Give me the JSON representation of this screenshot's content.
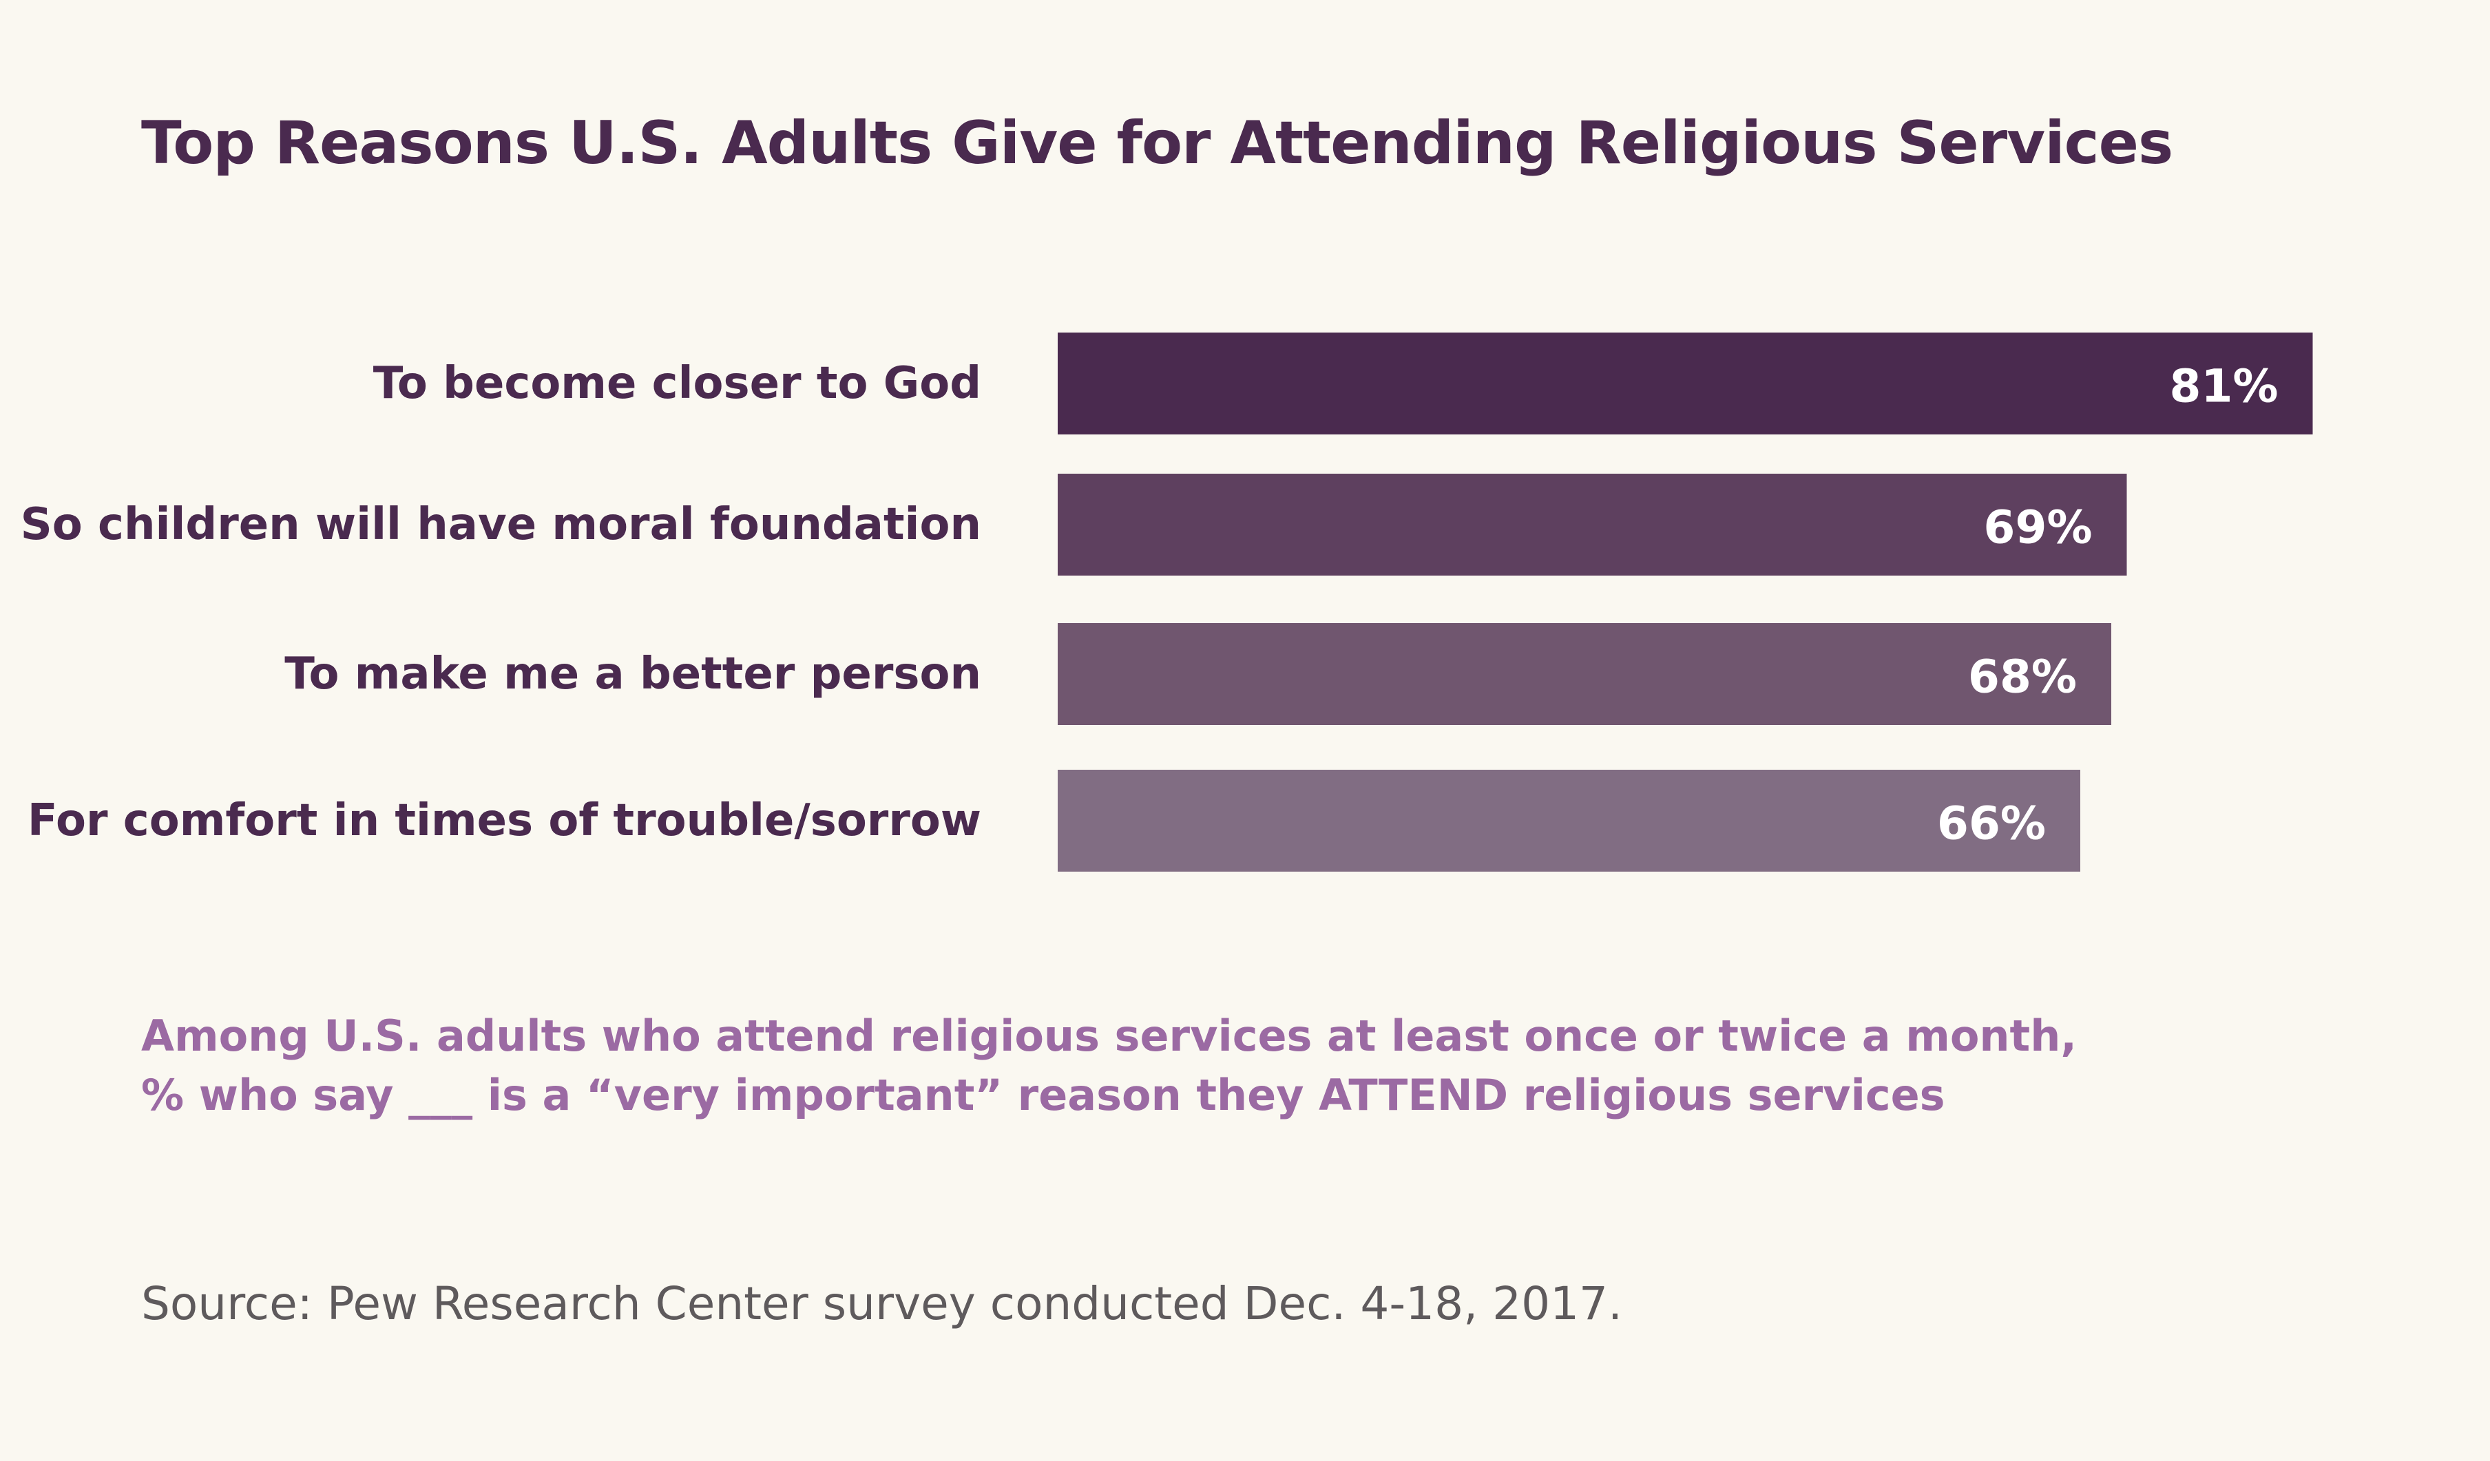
{
  "title": "Top Reasons U.S. Adults Give for Attending Religious Services",
  "subtitle_line1": "Among U.S. adults who attend religious services at least once or twice a month,",
  "subtitle_line2": "% who say ___ is a “very important” reason they ATTEND religious services",
  "source": "Source: Pew Research Center survey conducted Dec. 4-18, 2017.",
  "chart_data": {
    "type": "bar",
    "orientation": "horizontal",
    "categories": [
      "To become closer to God",
      "So children will have moral foundation",
      "To make me a better person",
      "For comfort in times of trouble/sorrow"
    ],
    "values": [
      81,
      69,
      68,
      66
    ],
    "value_labels": [
      "81%",
      "69%",
      "68%",
      "66%"
    ],
    "bar_colors": [
      "#4a2a4f",
      "#5e405f",
      "#70566f",
      "#816d83"
    ],
    "xlim": [
      0,
      100
    ],
    "grid": false,
    "legend": "none"
  }
}
